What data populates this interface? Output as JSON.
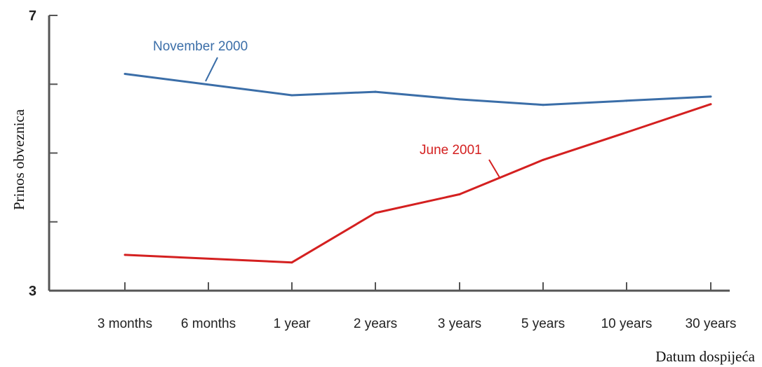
{
  "chart_data": {
    "type": "line",
    "xlabel": "Datum dospijeća",
    "ylabel": "Prinos  obveznica",
    "categories": [
      "3 months",
      "6 months",
      "1 year",
      "2 years",
      "3 years",
      "5 years",
      "10 years",
      "30 years"
    ],
    "y_ticks": [
      "7",
      "",
      "",
      "",
      "3"
    ],
    "ylim": [
      3,
      7
    ],
    "grid": false,
    "series": [
      {
        "name": "November 2000",
        "color": "#3b6ea8",
        "points": [
          {
            "category": "3 months",
            "y": 6.15
          },
          {
            "category": "1 year",
            "y": 5.84
          },
          {
            "category": "2 years",
            "y": 5.89
          },
          {
            "category": "3 years",
            "y": 5.78
          },
          {
            "category": "5 years",
            "y": 5.7
          },
          {
            "category": "10 years",
            "y": 5.76
          },
          {
            "category": "30 years",
            "y": 5.82
          }
        ]
      },
      {
        "name": "June 2001",
        "color": "#d42020",
        "points": [
          {
            "category": "3 months",
            "y": 3.52
          },
          {
            "category": "1 year",
            "y": 3.41
          },
          {
            "category": "2 years",
            "y": 4.13
          },
          {
            "category": "3 years",
            "y": 4.4
          },
          {
            "category": "5 years",
            "y": 4.9
          },
          {
            "category": "10 years",
            "y": 5.3
          },
          {
            "category": "30 years",
            "y": 5.71
          }
        ]
      }
    ]
  }
}
